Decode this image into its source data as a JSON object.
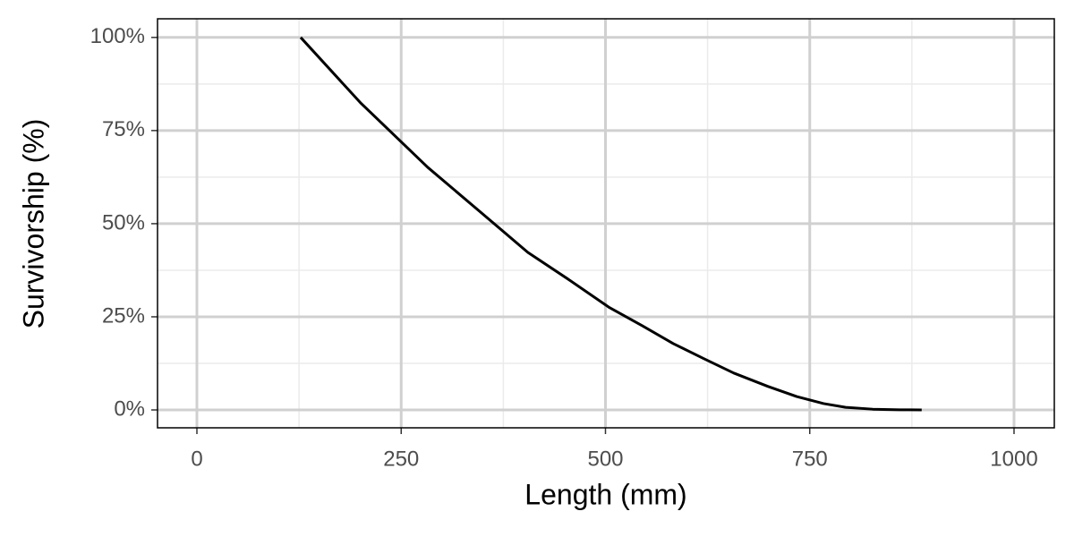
{
  "chart_data": {
    "type": "line",
    "x_label": "Length (mm)",
    "y_label": "Survivorship (%)",
    "x": [
      127,
      200,
      282.6,
      345,
      405,
      455,
      504,
      545,
      583,
      620,
      657,
      699,
      734,
      767,
      794,
      827,
      860,
      887
    ],
    "series": [
      {
        "name": "Survivorship",
        "color": "#000000",
        "values": [
          100,
          82.5,
          65.1,
          53.5,
          42.3,
          35,
          27.6,
          22.6,
          17.8,
          13.8,
          9.9,
          6.3,
          3.6,
          1.7,
          0.7,
          0.2,
          0.05,
          0
        ]
      }
    ],
    "xlim": [
      -48.2,
      1049.3
    ],
    "ylim": [
      -4.8,
      105
    ],
    "xticks": [
      0,
      250,
      500,
      750,
      1000
    ],
    "yticks": [
      {
        "value": 0,
        "label": "0%"
      },
      {
        "value": 25,
        "label": "25%"
      },
      {
        "value": 50,
        "label": "50%"
      },
      {
        "value": 75,
        "label": "75%"
      },
      {
        "value": 100,
        "label": "100%"
      }
    ],
    "x_minor_gridlines": [
      125,
      375,
      625,
      875
    ],
    "y_minor_gridlines": [
      12.5,
      37.5,
      62.5,
      87.5
    ],
    "grid": true
  }
}
